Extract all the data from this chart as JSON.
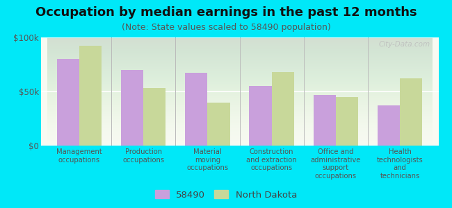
{
  "title": "Occupation by median earnings in the past 12 months",
  "subtitle": "(Note: State values scaled to 58490 population)",
  "background_outer": "#00e8f8",
  "background_inner_top": "#e8f0d8",
  "background_inner_bottom": "#f8faf2",
  "categories": [
    "Management\noccupations",
    "Production\noccupations",
    "Material\nmoving\noccupations",
    "Construction\nand extraction\noccupations",
    "Office and\nadministrative\nsupport\noccupations",
    "Health\ntechnologists\nand\ntechnicians"
  ],
  "values_58490": [
    80000,
    70000,
    67000,
    55000,
    47000,
    37000
  ],
  "values_nd": [
    92000,
    53000,
    40000,
    68000,
    45000,
    62000
  ],
  "color_58490": "#c9a0dc",
  "color_nd": "#c8d89a",
  "ylim": [
    0,
    100000
  ],
  "yticks": [
    0,
    50000,
    100000
  ],
  "ytick_labels": [
    "$0",
    "$50k",
    "$100k"
  ],
  "legend_labels": [
    "58490",
    "North Dakota"
  ],
  "bar_width": 0.35,
  "title_fontsize": 13,
  "subtitle_fontsize": 9,
  "tick_fontsize": 8.5,
  "legend_fontsize": 9.5,
  "watermark": "City-Data.com"
}
